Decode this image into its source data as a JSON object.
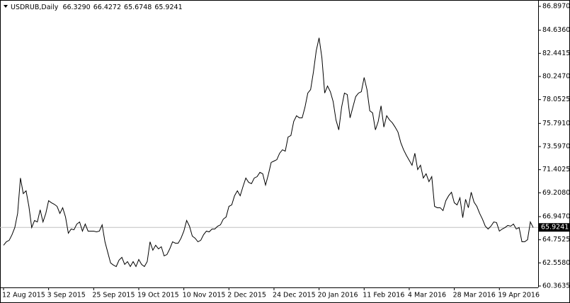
{
  "chart_data": {
    "type": "line",
    "title": "USDRUB,Daily",
    "quote": [
      "66.3290",
      "66.4272",
      "65.6748",
      "65.9241"
    ],
    "color": "#000000",
    "last_price": {
      "value": 65.9241,
      "label": "65.9241"
    },
    "categories": [
      "12 Aug 2015",
      null,
      null,
      null,
      null,
      null,
      null,
      null,
      null,
      null,
      null,
      null,
      null,
      null,
      null,
      null,
      "3 Sep 2015",
      null,
      null,
      null,
      null,
      null,
      null,
      null,
      null,
      null,
      null,
      null,
      null,
      null,
      null,
      null,
      "25 Sep 2015",
      null,
      null,
      null,
      null,
      null,
      null,
      null,
      null,
      null,
      null,
      null,
      null,
      null,
      null,
      null,
      "19 Oct 2015",
      null,
      null,
      null,
      null,
      null,
      null,
      null,
      null,
      null,
      null,
      null,
      null,
      null,
      null,
      null,
      "10 Nov 2015",
      null,
      null,
      null,
      null,
      null,
      null,
      null,
      null,
      null,
      null,
      null,
      null,
      null,
      null,
      null,
      "2 Dec 2015",
      null,
      null,
      null,
      null,
      null,
      null,
      null,
      null,
      null,
      null,
      null,
      null,
      null,
      null,
      null,
      "24 Dec 2015",
      null,
      null,
      null,
      null,
      null,
      null,
      null,
      null,
      null,
      null,
      null,
      null,
      null,
      null,
      null,
      "20 Jan 2016",
      null,
      null,
      null,
      null,
      null,
      null,
      null,
      null,
      null,
      null,
      null,
      null,
      null,
      null,
      null,
      "11 Feb 2016",
      null,
      null,
      null,
      null,
      null,
      null,
      null,
      null,
      null,
      null,
      null,
      null,
      null,
      null,
      null,
      "4 Mar 2016",
      null,
      null,
      null,
      null,
      null,
      null,
      null,
      null,
      null,
      null,
      null,
      null,
      null,
      null,
      null,
      "28 Mar 2016",
      null,
      null,
      null,
      null,
      null,
      null,
      null,
      null,
      null,
      null,
      null,
      null,
      null,
      null,
      null,
      "19 Apr 2016",
      null,
      null,
      null,
      null,
      null,
      null,
      null,
      null,
      null,
      null,
      null,
      null
    ],
    "values": [
      64.23,
      64.56,
      64.7,
      65.23,
      65.91,
      67.25,
      70.61,
      69.13,
      69.4,
      67.92,
      65.91,
      66.58,
      66.44,
      67.59,
      66.44,
      67.25,
      68.46,
      68.26,
      68.12,
      67.92,
      67.25,
      67.79,
      66.91,
      65.37,
      65.77,
      65.7,
      66.24,
      66.44,
      65.57,
      66.24,
      65.57,
      65.57,
      65.57,
      65.5,
      65.57,
      66.17,
      64.56,
      63.55,
      62.55,
      62.35,
      62.21,
      62.82,
      63.08,
      62.41,
      62.68,
      62.21,
      62.68,
      62.21,
      62.88,
      62.41,
      62.21,
      62.68,
      64.56,
      63.76,
      64.23,
      63.89,
      64.09,
      63.22,
      63.35,
      63.89,
      64.56,
      64.43,
      64.43,
      64.9,
      65.57,
      66.58,
      66.04,
      65.1,
      64.9,
      64.56,
      64.7,
      65.23,
      65.57,
      65.5,
      65.77,
      65.77,
      66.04,
      66.17,
      66.71,
      66.91,
      67.92,
      68.06,
      68.93,
      69.4,
      68.93,
      69.8,
      70.61,
      70.2,
      70.07,
      70.61,
      70.74,
      71.15,
      71.01,
      69.94,
      70.94,
      72.09,
      72.22,
      72.35,
      72.96,
      73.29,
      73.16,
      74.5,
      74.64,
      75.98,
      76.52,
      76.32,
      76.32,
      77.33,
      78.67,
      79.0,
      80.68,
      82.7,
      83.91,
      82.03,
      78.67,
      79.34,
      78.8,
      77.86,
      76.12,
      75.18,
      77.33,
      78.67,
      78.53,
      76.32,
      77.33,
      78.33,
      78.67,
      78.8,
      80.15,
      79.0,
      76.99,
      76.79,
      75.18,
      75.98,
      77.46,
      75.44,
      76.52,
      76.12,
      75.85,
      75.44,
      74.97,
      73.97,
      73.29,
      72.76,
      72.29,
      71.82,
      72.96,
      71.41,
      71.82,
      70.61,
      71.01,
      70.27,
      70.74,
      67.92,
      67.79,
      67.79,
      67.52,
      68.46,
      68.93,
      69.26,
      68.26,
      68.06,
      68.73,
      66.85,
      68.59,
      67.79,
      69.26,
      68.32,
      67.92,
      67.25,
      66.71,
      66.04,
      65.77,
      66.04,
      66.44,
      66.38,
      65.57,
      65.77,
      65.91,
      66.11,
      66.04,
      66.24,
      65.77,
      65.91,
      64.56,
      64.56,
      64.76,
      66.44,
      65.91
    ],
    "ylim": [
      60.3635,
      86.897
    ],
    "yticks": [
      {
        "value": 86.897,
        "label": "86.8970"
      },
      {
        "value": 84.636,
        "label": "84.6360"
      },
      82.4415,
      {
        "value": 80.247,
        "label": "80.2470"
      },
      78.0525,
      {
        "value": 75.791,
        "label": "75.7910"
      },
      {
        "value": 73.597,
        "label": "73.5970"
      },
      71.4025,
      {
        "value": 69.208,
        "label": "69.2080"
      },
      {
        "value": 66.947,
        "label": "66.9470"
      },
      64.7525,
      {
        "value": 62.558,
        "label": "62.5580"
      },
      60.3635
    ]
  }
}
